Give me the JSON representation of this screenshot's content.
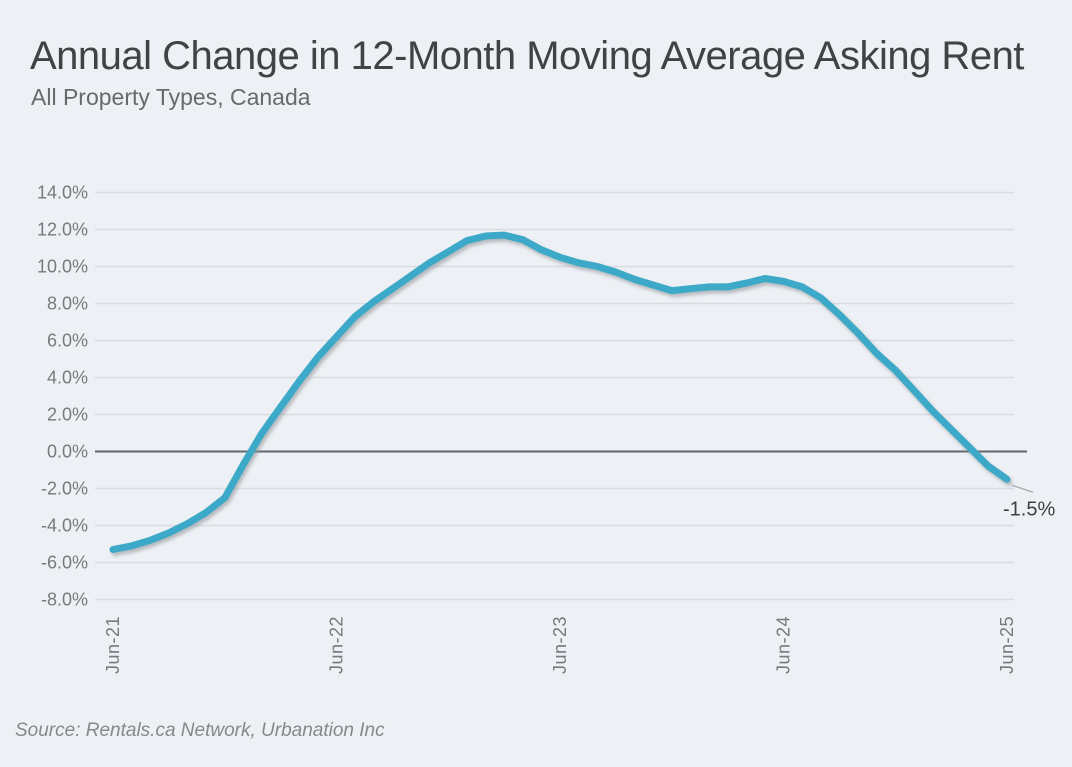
{
  "chart_data": {
    "type": "line",
    "title": "Annual Change in 12-Month Moving Average Asking Rent",
    "subtitle": "All Property Types, Canada",
    "source": "Source: Rentals.ca Network, Urbanation Inc",
    "xlabel": "",
    "ylabel": "",
    "ylim": [
      -8,
      14
    ],
    "grid": "horizontal",
    "zero_line": true,
    "x": [
      "Jun-21",
      "Jul-21",
      "Aug-21",
      "Sep-21",
      "Oct-21",
      "Nov-21",
      "Dec-21",
      "Jan-22",
      "Feb-22",
      "Mar-22",
      "Apr-22",
      "May-22",
      "Jun-22",
      "Jul-22",
      "Aug-22",
      "Sep-22",
      "Oct-22",
      "Nov-22",
      "Dec-22",
      "Jan-23",
      "Feb-23",
      "Mar-23",
      "Apr-23",
      "May-23",
      "Jun-23",
      "Jul-23",
      "Aug-23",
      "Sep-23",
      "Oct-23",
      "Nov-23",
      "Dec-23",
      "Jan-24",
      "Feb-24",
      "Mar-24",
      "Apr-24",
      "May-24",
      "Jun-24",
      "Jul-24",
      "Aug-24",
      "Sep-24",
      "Oct-24",
      "Nov-24",
      "Dec-24",
      "Jan-25",
      "Feb-25",
      "Mar-25",
      "Apr-25",
      "May-25",
      "Jun-25"
    ],
    "series": [
      {
        "name": "Annual change in 12-month moving average asking rent (%)",
        "color": "#3da9c8",
        "values": [
          -5.3,
          -5.1,
          -4.8,
          -4.4,
          -3.9,
          -3.3,
          -2.5,
          -0.7,
          1.0,
          2.4,
          3.8,
          5.1,
          6.2,
          7.3,
          8.1,
          8.8,
          9.5,
          10.2,
          10.8,
          11.4,
          11.65,
          11.7,
          11.45,
          10.9,
          10.5,
          10.2,
          10.0,
          9.7,
          9.3,
          9.0,
          8.7,
          8.8,
          8.9,
          8.9,
          9.1,
          9.35,
          9.2,
          8.9,
          8.3,
          7.4,
          6.4,
          5.3,
          4.4,
          3.3,
          2.2,
          1.2,
          0.2,
          -0.8,
          -1.5
        ]
      }
    ],
    "x_ticks": [
      {
        "label": "Jun-21",
        "month_index": 0
      },
      {
        "label": "Jun-22",
        "month_index": 12
      },
      {
        "label": "Jun-23",
        "month_index": 24
      },
      {
        "label": "Jun-24",
        "month_index": 36
      },
      {
        "label": "Jun-25",
        "month_index": 48
      }
    ],
    "y_ticks": [
      {
        "label": "14.0%",
        "value": 14
      },
      {
        "label": "12.0%",
        "value": 12
      },
      {
        "label": "10.0%",
        "value": 10
      },
      {
        "label": "8.0%",
        "value": 8
      },
      {
        "label": "6.0%",
        "value": 6
      },
      {
        "label": "4.0%",
        "value": 4
      },
      {
        "label": "2.0%",
        "value": 2
      },
      {
        "label": "0.0%",
        "value": 0
      },
      {
        "label": "-2.0%",
        "value": -2
      },
      {
        "label": "-4.0%",
        "value": -4
      },
      {
        "label": "-6.0%",
        "value": -6
      },
      {
        "label": "-8.0%",
        "value": -8
      }
    ],
    "annotation": {
      "label": "-1.5%",
      "month_index": 48,
      "value": -1.5
    },
    "legend": "none",
    "colors": {
      "background": "#edf0f4",
      "line": "#3da9c8",
      "line_shadow": "#8f959b",
      "gridline": "#d8dbe0",
      "zero_line": "#62666b",
      "title": "#404245",
      "subtitle": "#67696d",
      "tick_label": "#76797d",
      "annotation": "#3d3f42",
      "annotation_leader": "#a7aaae",
      "source": "#85888c"
    }
  }
}
